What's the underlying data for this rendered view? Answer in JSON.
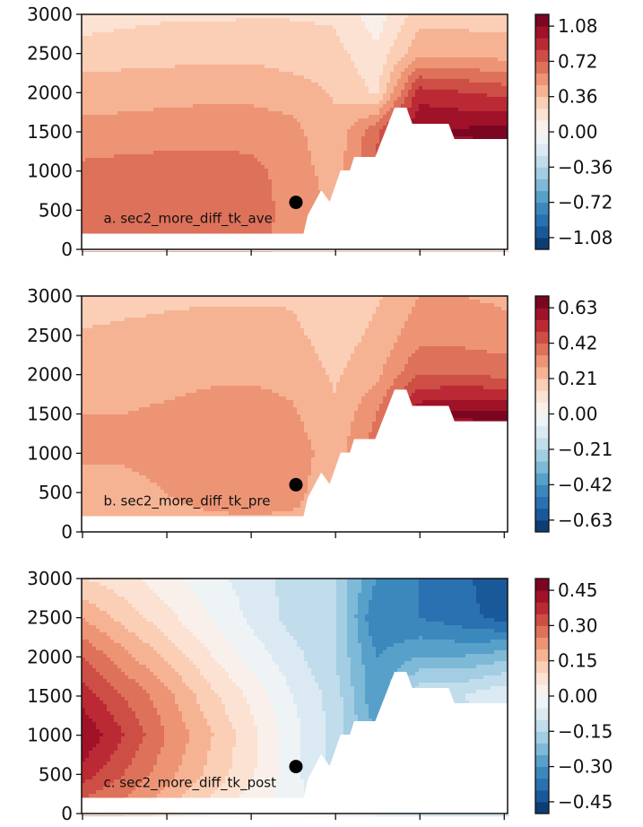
{
  "chart_data": [
    {
      "type": "contour",
      "label": "a. sec2_more_diff_tk_ave",
      "colormap": "RdBu_r",
      "levels": {
        "min": -1.2,
        "max": 1.2,
        "count": 20
      },
      "colorbar_ticks": [
        "1.08",
        "0.72",
        "0.36",
        "0.00",
        "−0.36",
        "−0.72",
        "−1.08"
      ],
      "colorbar_tick_values": [
        1.08,
        0.72,
        0.36,
        0.0,
        -0.36,
        -0.72,
        -1.08
      ],
      "y_ticks": [
        "0",
        "500",
        "1000",
        "1500",
        "2000",
        "2500",
        "3000"
      ],
      "ylim": [
        0,
        3000
      ],
      "x_tick_count": 6,
      "xlim": [
        0,
        5.05
      ],
      "grid_x": [
        0,
        0.5,
        1,
        1.5,
        2,
        2.5,
        3,
        3.5,
        4,
        4.5,
        5
      ],
      "grid_depth": [
        200,
        500,
        1000,
        1500,
        2000,
        2500,
        3000
      ],
      "values": [
        [
          0.62,
          0.63,
          0.63,
          0.63,
          0.62,
          0.58,
          0.55,
          0.5,
          0.6,
          0.6,
          0.6
        ],
        [
          0.64,
          0.65,
          0.65,
          0.65,
          0.63,
          0.58,
          0.45,
          0.6,
          0.7,
          0.7,
          0.7
        ],
        [
          0.63,
          0.65,
          0.66,
          0.66,
          0.64,
          0.55,
          0.42,
          0.75,
          0.9,
          0.9,
          0.9
        ],
        [
          0.52,
          0.53,
          0.54,
          0.55,
          0.55,
          0.52,
          0.38,
          0.7,
          1.1,
          1.1,
          1.15
        ],
        [
          0.42,
          0.43,
          0.44,
          0.45,
          0.45,
          0.42,
          0.35,
          0.22,
          0.9,
          0.85,
          0.8
        ],
        [
          0.3,
          0.31,
          0.32,
          0.32,
          0.33,
          0.3,
          0.28,
          0.15,
          0.45,
          0.45,
          0.42
        ],
        [
          0.17,
          0.2,
          0.22,
          0.22,
          0.23,
          0.23,
          0.22,
          0.05,
          0.3,
          0.3,
          0.3
        ]
      ],
      "marker": {
        "x": 2.53,
        "y": 600
      }
    },
    {
      "type": "contour",
      "label": "b. sec2_more_diff_tk_pre",
      "colormap": "RdBu_r",
      "levels": {
        "min": -0.7,
        "max": 0.7,
        "count": 20
      },
      "colorbar_ticks": [
        "0.63",
        "0.42",
        "0.21",
        "0.00",
        "−0.21",
        "−0.42",
        "−0.63"
      ],
      "colorbar_tick_values": [
        0.63,
        0.42,
        0.21,
        0.0,
        -0.21,
        -0.42,
        -0.63
      ],
      "y_ticks": [
        "0",
        "500",
        "1000",
        "1500",
        "2000",
        "2500",
        "3000"
      ],
      "ylim": [
        0,
        3000
      ],
      "x_tick_count": 6,
      "xlim": [
        0,
        5.05
      ],
      "grid_x": [
        0,
        0.5,
        1,
        1.5,
        2,
        2.5,
        3,
        3.5,
        4,
        4.5,
        5
      ],
      "grid_depth": [
        200,
        500,
        1000,
        1500,
        2000,
        2500,
        3000
      ],
      "values": [
        [
          0.25,
          0.25,
          0.26,
          0.27,
          0.28,
          0.27,
          0.25,
          0.3,
          0.4,
          0.4,
          0.4
        ],
        [
          0.26,
          0.26,
          0.28,
          0.31,
          0.32,
          0.31,
          0.22,
          0.35,
          0.45,
          0.45,
          0.45
        ],
        [
          0.29,
          0.29,
          0.3,
          0.32,
          0.32,
          0.32,
          0.24,
          0.4,
          0.5,
          0.5,
          0.5
        ],
        [
          0.28,
          0.28,
          0.29,
          0.3,
          0.31,
          0.29,
          0.22,
          0.35,
          0.62,
          0.65,
          0.66
        ],
        [
          0.25,
          0.25,
          0.26,
          0.27,
          0.27,
          0.26,
          0.2,
          0.26,
          0.42,
          0.42,
          0.4
        ],
        [
          0.22,
          0.23,
          0.24,
          0.24,
          0.24,
          0.23,
          0.17,
          0.23,
          0.32,
          0.32,
          0.3
        ],
        [
          0.16,
          0.18,
          0.19,
          0.2,
          0.2,
          0.2,
          0.15,
          0.2,
          0.28,
          0.28,
          0.27
        ]
      ],
      "marker": {
        "x": 2.53,
        "y": 600
      }
    },
    {
      "type": "contour",
      "label": "c. sec2_more_diff_tk_post",
      "colormap": "RdBu_r",
      "levels": {
        "min": -0.5,
        "max": 0.5,
        "count": 20
      },
      "colorbar_ticks": [
        "0.45",
        "0.30",
        "0.15",
        "0.00",
        "−0.15",
        "−0.30",
        "−0.45"
      ],
      "colorbar_tick_values": [
        0.45,
        0.3,
        0.15,
        0.0,
        -0.15,
        -0.3,
        -0.45
      ],
      "y_ticks": [
        "0",
        "500",
        "1000",
        "1500",
        "2000",
        "2500",
        "3000"
      ],
      "ylim": [
        0,
        3000
      ],
      "x_tick_count": 6,
      "xlim": [
        0,
        5.05
      ],
      "grid_x": [
        0,
        0.5,
        1,
        1.5,
        2,
        2.5,
        3,
        3.5,
        4,
        4.5,
        5
      ],
      "grid_depth": [
        200,
        500,
        1000,
        1500,
        2000,
        2500,
        3000
      ],
      "values": [
        [
          0.3,
          0.25,
          0.18,
          0.1,
          0.03,
          -0.03,
          -0.1,
          -0.15,
          -0.2,
          -0.2,
          -0.2
        ],
        [
          0.38,
          0.3,
          0.22,
          0.14,
          0.06,
          -0.03,
          -0.12,
          -0.2,
          -0.2,
          -0.2,
          -0.2
        ],
        [
          0.45,
          0.35,
          0.25,
          0.16,
          0.07,
          -0.03,
          -0.12,
          -0.25,
          -0.2,
          -0.15,
          -0.12
        ],
        [
          0.38,
          0.3,
          0.22,
          0.12,
          0.04,
          -0.05,
          -0.12,
          -0.3,
          -0.1,
          -0.1,
          -0.05
        ],
        [
          0.3,
          0.22,
          0.14,
          0.06,
          -0.02,
          -0.08,
          -0.15,
          -0.3,
          -0.25,
          -0.25,
          -0.22
        ],
        [
          0.2,
          0.13,
          0.07,
          0.0,
          -0.06,
          -0.12,
          -0.15,
          -0.35,
          -0.35,
          -0.38,
          -0.42
        ],
        [
          0.1,
          0.07,
          0.02,
          -0.03,
          -0.07,
          -0.12,
          -0.15,
          -0.3,
          -0.35,
          -0.38,
          -0.45
        ]
      ],
      "marker": {
        "x": 2.53,
        "y": 600
      }
    }
  ],
  "bathymetry_mask": [
    [
      -0.1,
      200
    ],
    [
      2.62,
      200
    ],
    [
      2.67,
      435
    ],
    [
      2.83,
      756
    ],
    [
      2.93,
      607
    ],
    [
      3.06,
      1008
    ],
    [
      3.17,
      1008
    ],
    [
      3.22,
      1180
    ],
    [
      3.47,
      1180
    ],
    [
      3.7,
      1809
    ],
    [
      3.84,
      1809
    ],
    [
      3.91,
      1603
    ],
    [
      4.34,
      1603
    ],
    [
      4.41,
      1408
    ],
    [
      5.1,
      1408
    ]
  ],
  "colors": {
    "frame": "#111111",
    "marker": "#000000",
    "mask": "#ffffff"
  }
}
